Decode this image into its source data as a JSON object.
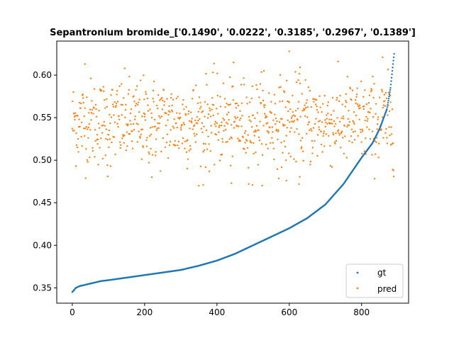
{
  "chart_data": {
    "type": "scatter",
    "title": "Sepantronium bromide_['0.1490', '0.0222', '0.3185', '0.2967', '0.1389']",
    "xlabel": "",
    "ylabel": "",
    "xlim": [
      -43,
      930
    ],
    "ylim": [
      0.332,
      0.64
    ],
    "xticks": [
      0,
      200,
      400,
      600,
      800
    ],
    "yticks": [
      0.35,
      0.4,
      0.45,
      0.5,
      0.55,
      0.6
    ],
    "ytick_labels": [
      "0.35",
      "0.40",
      "0.45",
      "0.50",
      "0.55",
      "0.60"
    ],
    "grid": false,
    "legend": {
      "position": "lower-right"
    },
    "n_points": 890,
    "series": [
      {
        "name": "gt",
        "color": "#1f77b4",
        "marker_size": 1.2,
        "description": "monotonically increasing sorted ground truth",
        "x": [
          0,
          10,
          20,
          40,
          60,
          80,
          100,
          150,
          200,
          250,
          300,
          350,
          400,
          450,
          500,
          550,
          600,
          650,
          700,
          750,
          800,
          830,
          850,
          870,
          880,
          890
        ],
        "y": [
          0.345,
          0.35,
          0.352,
          0.354,
          0.356,
          0.358,
          0.359,
          0.362,
          0.365,
          0.368,
          0.371,
          0.376,
          0.382,
          0.39,
          0.4,
          0.41,
          0.42,
          0.432,
          0.448,
          0.472,
          0.503,
          0.52,
          0.537,
          0.56,
          0.585,
          0.625
        ]
      },
      {
        "name": "pred",
        "color": "#ff7f0e",
        "marker_size": 1.2,
        "description": "noisy predictions, roughly uniform across x",
        "y_center": 0.545,
        "y_spread": 0.035,
        "y_min": 0.47,
        "y_max": 0.628,
        "outliers": [
          {
            "x": 35,
            "y": 0.613
          },
          {
            "x": 600,
            "y": 0.628
          },
          {
            "x": 630,
            "y": 0.609
          },
          {
            "x": 858,
            "y": 0.621
          },
          {
            "x": 530,
            "y": 0.605
          },
          {
            "x": 98,
            "y": 0.481
          },
          {
            "x": 220,
            "y": 0.48
          },
          {
            "x": 362,
            "y": 0.471
          },
          {
            "x": 440,
            "y": 0.473
          },
          {
            "x": 498,
            "y": 0.471
          },
          {
            "x": 592,
            "y": 0.476
          },
          {
            "x": 627,
            "y": 0.472
          }
        ]
      }
    ]
  }
}
